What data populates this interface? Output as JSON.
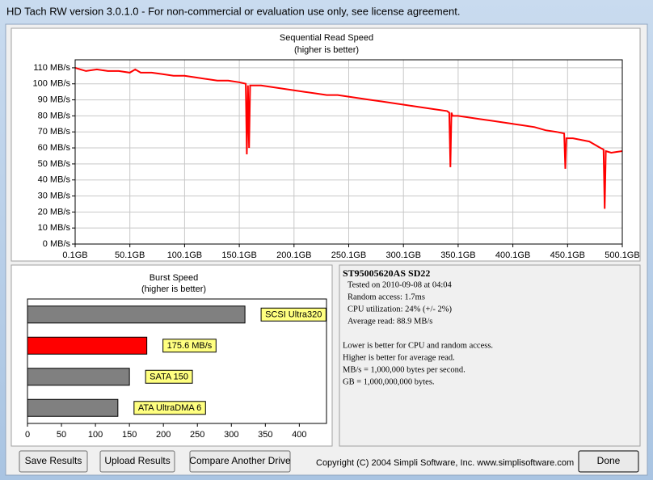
{
  "window": {
    "title": "HD Tach RW version 3.0.1.0  - For non-commercial or evaluation use only, see license agreement."
  },
  "chart_data": [
    {
      "type": "line",
      "title": "Sequential Read Speed",
      "subtitle": "(higher is better)",
      "color": "#ff0000",
      "grid": true,
      "x": [
        0.1,
        5,
        10,
        20,
        30,
        40,
        50,
        55,
        60,
        70,
        80,
        90,
        100,
        110,
        120,
        130,
        140,
        150,
        156,
        157,
        158,
        159,
        160,
        170,
        180,
        190,
        200,
        210,
        220,
        230,
        240,
        250,
        260,
        270,
        280,
        290,
        300,
        310,
        320,
        330,
        340,
        342,
        343,
        344,
        345,
        350,
        360,
        370,
        380,
        390,
        400,
        410,
        420,
        430,
        440,
        447,
        448,
        449,
        455,
        470,
        480,
        483,
        484,
        485,
        490,
        500.1
      ],
      "values": [
        110,
        109,
        108,
        109,
        108,
        108,
        107,
        109,
        107,
        107,
        106,
        105,
        105,
        104,
        103,
        102,
        102,
        101,
        100,
        56,
        99,
        60,
        99,
        99,
        98,
        97,
        96,
        95,
        94,
        93,
        93,
        92,
        91,
        90,
        89,
        88,
        87,
        86,
        85,
        84,
        83,
        82,
        48,
        82,
        80,
        80,
        79,
        78,
        77,
        76,
        75,
        74,
        73,
        71,
        70,
        69,
        47,
        66,
        66,
        64,
        60,
        59,
        22,
        58,
        57,
        58
      ],
      "xlim": [
        0.1,
        500.1
      ],
      "ylim": [
        0,
        115
      ],
      "xticks": [
        {
          "value": 0.1,
          "label": "0.1GB"
        },
        {
          "value": 50.1,
          "label": "50.1GB"
        },
        {
          "value": 100.1,
          "label": "100.1GB"
        },
        {
          "value": 150.1,
          "label": "150.1GB"
        },
        {
          "value": 200.1,
          "label": "200.1GB"
        },
        {
          "value": 250.1,
          "label": "250.1GB"
        },
        {
          "value": 300.1,
          "label": "300.1GB"
        },
        {
          "value": 350.1,
          "label": "350.1GB"
        },
        {
          "value": 400.1,
          "label": "400.1GB"
        },
        {
          "value": 450.1,
          "label": "450.1GB"
        },
        {
          "value": 500.1,
          "label": "500.1GB"
        }
      ],
      "yticks": [
        {
          "value": 0,
          "label": "0 MB/s"
        },
        {
          "value": 10,
          "label": "10 MB/s"
        },
        {
          "value": 20,
          "label": "20 MB/s"
        },
        {
          "value": 30,
          "label": "30 MB/s"
        },
        {
          "value": 40,
          "label": "40 MB/s"
        },
        {
          "value": 50,
          "label": "50 MB/s"
        },
        {
          "value": 60,
          "label": "60 MB/s"
        },
        {
          "value": 70,
          "label": "70 MB/s"
        },
        {
          "value": 80,
          "label": "80 MB/s"
        },
        {
          "value": 90,
          "label": "90 MB/s"
        },
        {
          "value": 100,
          "label": "100 MB/s"
        },
        {
          "value": 110,
          "label": "110 MB/s"
        }
      ]
    },
    {
      "type": "bar",
      "orientation": "horizontal",
      "title": "Burst Speed",
      "subtitle": "(higher is better)",
      "grid": false,
      "categories": [
        "SCSI Ultra320",
        null,
        "SATA 150",
        "ATA UltraDMA 6"
      ],
      "values": [
        320,
        175.6,
        150,
        133
      ],
      "value_labels": [
        null,
        "175.6 MB/s",
        null,
        null
      ],
      "colors": [
        "#808080",
        "#ff0000",
        "#808080",
        "#808080"
      ],
      "xlim": [
        0,
        440
      ],
      "xticks": [
        0,
        50,
        100,
        150,
        200,
        250,
        300,
        350,
        400
      ]
    }
  ],
  "info": {
    "drive": "ST95005620AS SD22",
    "results": [
      "Tested on 2010-09-08 at 04:04",
      "Random access: 1.7ms",
      "CPU utilization: 24% (+/- 2%)",
      "Average read: 88.9 MB/s"
    ],
    "notes": [
      "Lower is better for CPU and random access.",
      "Higher is better for average read.",
      "MB/s = 1,000,000 bytes per second.",
      "GB = 1,000,000,000 bytes."
    ]
  },
  "buttons": [
    "Save Results",
    "Upload Results",
    "Compare Another Drive",
    "Done"
  ],
  "copyright": "Copyright (C) 2004 Simpli Software, Inc. www.simplisoftware.com"
}
